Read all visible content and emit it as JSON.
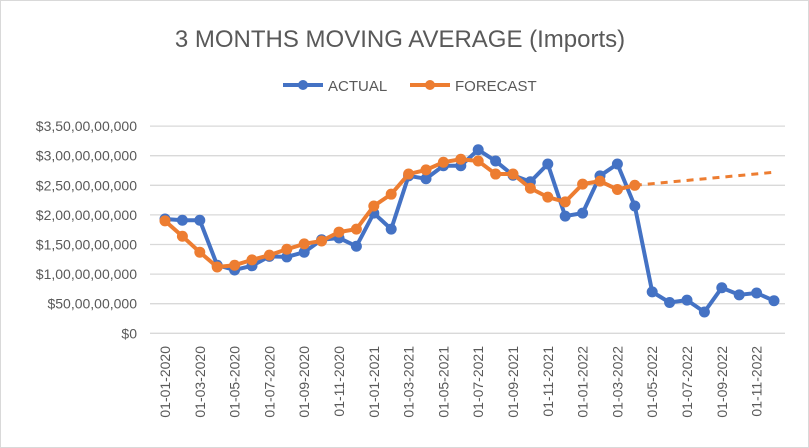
{
  "chart_data": {
    "type": "line",
    "title": "3 MONTHS MOVING AVERAGE (Imports)",
    "xlabel": "",
    "ylabel": "",
    "legend_position": "top",
    "grid": true,
    "ylim": [
      0,
      3500000000
    ],
    "y_tick_values": [
      0,
      500000000,
      1000000000,
      1500000000,
      2000000000,
      2500000000,
      3000000000,
      3500000000
    ],
    "y_tick_labels": [
      "$0",
      "$50,00,00,000",
      "$1,00,00,00,000",
      "$1,50,00,00,000",
      "$2,00,00,00,000",
      "$2,50,00,00,000",
      "$3,00,00,00,000",
      "$3,50,00,00,000"
    ],
    "x": [
      "01-01-2020",
      "01-02-2020",
      "01-03-2020",
      "01-04-2020",
      "01-05-2020",
      "01-06-2020",
      "01-07-2020",
      "01-08-2020",
      "01-09-2020",
      "01-10-2020",
      "01-11-2020",
      "01-12-2020",
      "01-01-2021",
      "01-02-2021",
      "01-03-2021",
      "01-04-2021",
      "01-05-2021",
      "01-06-2021",
      "01-07-2021",
      "01-08-2021",
      "01-09-2021",
      "01-10-2021",
      "01-11-2021",
      "01-12-2021",
      "01-01-2022",
      "01-02-2022",
      "01-03-2022",
      "01-04-2022",
      "01-05-2022",
      "01-06-2022",
      "01-07-2022",
      "01-08-2022",
      "01-09-2022",
      "01-10-2022",
      "01-11-2022",
      "01-12-2022"
    ],
    "x_tick_labels": [
      "01-01-2020",
      "01-03-2020",
      "01-05-2020",
      "01-07-2020",
      "01-09-2020",
      "01-11-2020",
      "01-01-2021",
      "01-03-2021",
      "01-05-2021",
      "01-07-2021",
      "01-09-2021",
      "01-11-2021",
      "01-01-2022",
      "01-03-2022",
      "01-05-2022",
      "01-07-2022",
      "01-09-2022",
      "01-11-2022"
    ],
    "series": [
      {
        "name": "ACTUAL",
        "color": "#4472C4",
        "values": [
          1930000000,
          1910000000,
          1910000000,
          1150000000,
          1070000000,
          1140000000,
          1300000000,
          1290000000,
          1370000000,
          1580000000,
          1610000000,
          1470000000,
          2030000000,
          1760000000,
          2660000000,
          2610000000,
          2830000000,
          2830000000,
          3100000000,
          2910000000,
          2670000000,
          2560000000,
          2860000000,
          1980000000,
          2030000000,
          2660000000,
          2860000000,
          2150000000,
          700000000,
          520000000,
          560000000,
          360000000,
          770000000,
          650000000,
          680000000,
          550000000
        ]
      },
      {
        "name": "FORECAST",
        "color": "#ED7D31",
        "values": [
          1900000000,
          1640000000,
          1370000000,
          1120000000,
          1150000000,
          1240000000,
          1320000000,
          1420000000,
          1510000000,
          1560000000,
          1710000000,
          1760000000,
          2150000000,
          2350000000,
          2690000000,
          2760000000,
          2890000000,
          2940000000,
          2910000000,
          2690000000,
          2690000000,
          2450000000,
          2300000000,
          2220000000,
          2520000000,
          2570000000,
          2430000000,
          2500000000,
          null,
          null,
          null,
          null,
          null,
          null,
          null,
          null
        ],
        "trend_end": 2720000000
      }
    ]
  }
}
